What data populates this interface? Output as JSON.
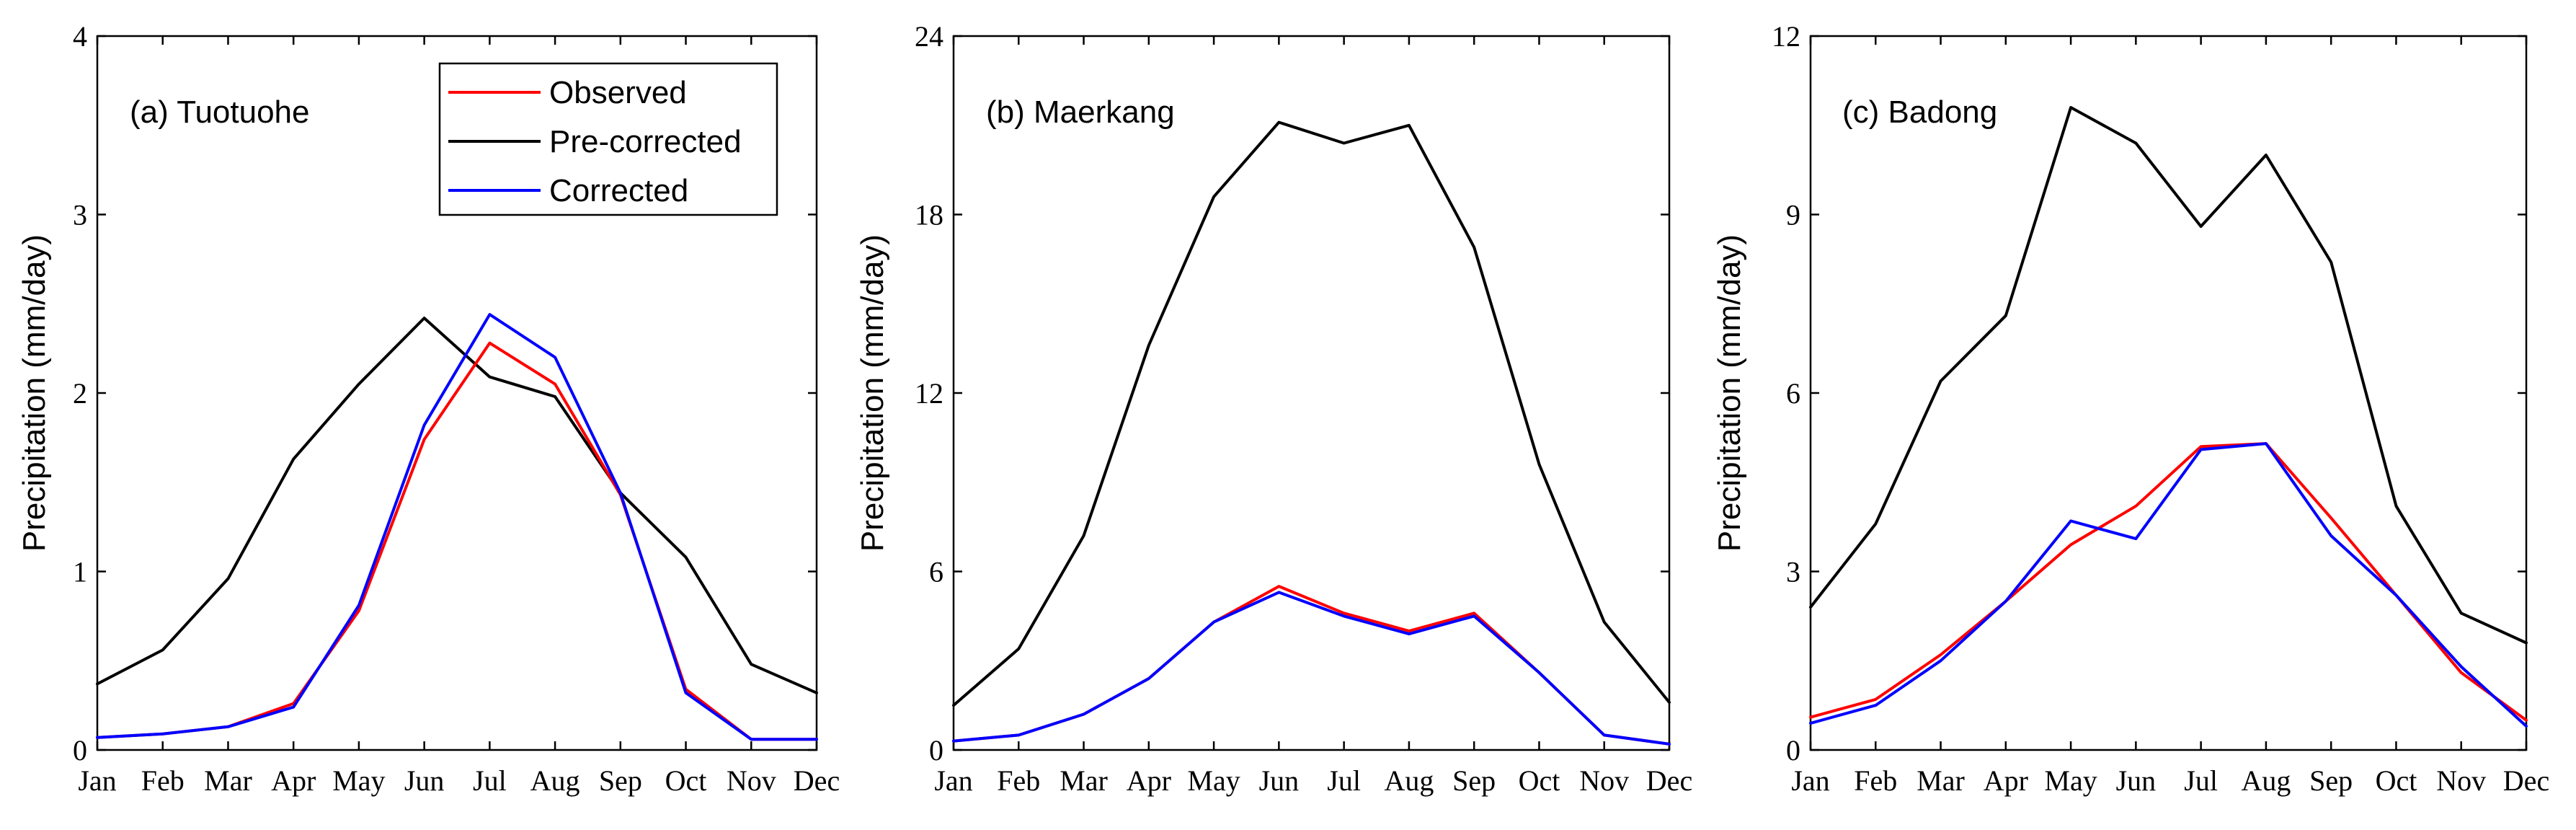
{
  "chart_data": [
    {
      "type": "line",
      "title": "(a) Tuotuohe",
      "xlabel": "",
      "ylabel": "Precipitation (mm/day)",
      "categories": [
        "Jan",
        "Feb",
        "Mar",
        "Apr",
        "May",
        "Jun",
        "Jul",
        "Aug",
        "Sep",
        "Oct",
        "Nov",
        "Dec"
      ],
      "ylim": [
        0,
        4
      ],
      "yticks": [
        0,
        1,
        2,
        3,
        4
      ],
      "legend": "top-right",
      "series": [
        {
          "name": "Observed",
          "color": "#ff0000",
          "values": [
            0.07,
            0.09,
            0.13,
            0.26,
            0.78,
            1.74,
            2.28,
            2.05,
            1.43,
            0.34,
            0.06,
            0.06
          ]
        },
        {
          "name": "Pre-corrected",
          "color": "#000000",
          "values": [
            0.37,
            0.56,
            0.96,
            1.63,
            2.05,
            2.42,
            2.09,
            1.98,
            1.44,
            1.08,
            0.48,
            0.32
          ]
        },
        {
          "name": "Corrected",
          "color": "#0000ff",
          "values": [
            0.07,
            0.09,
            0.13,
            0.24,
            0.81,
            1.82,
            2.44,
            2.2,
            1.44,
            0.32,
            0.06,
            0.06
          ]
        }
      ]
    },
    {
      "type": "line",
      "title": "(b) Maerkang",
      "xlabel": "",
      "ylabel": "Precipitation (mm/day)",
      "categories": [
        "Jan",
        "Feb",
        "Mar",
        "Apr",
        "May",
        "Jun",
        "Jul",
        "Aug",
        "Sep",
        "Oct",
        "Nov",
        "Dec"
      ],
      "ylim": [
        0,
        24
      ],
      "yticks": [
        0,
        6,
        12,
        18,
        24
      ],
      "series": [
        {
          "name": "Observed",
          "color": "#ff0000",
          "values": [
            0.3,
            0.5,
            1.2,
            2.4,
            4.3,
            5.5,
            4.6,
            4.0,
            4.6,
            2.6,
            0.5,
            0.2
          ]
        },
        {
          "name": "Pre-corrected",
          "color": "#000000",
          "values": [
            1.5,
            3.4,
            7.2,
            13.6,
            18.6,
            21.1,
            20.4,
            21.0,
            16.9,
            9.6,
            4.3,
            1.6
          ]
        },
        {
          "name": "Corrected",
          "color": "#0000ff",
          "values": [
            0.3,
            0.5,
            1.2,
            2.4,
            4.3,
            5.3,
            4.5,
            3.9,
            4.5,
            2.6,
            0.5,
            0.2
          ]
        }
      ]
    },
    {
      "type": "line",
      "title": "(c) Badong",
      "xlabel": "",
      "ylabel": "Precipitation (mm/day)",
      "categories": [
        "Jan",
        "Feb",
        "Mar",
        "Apr",
        "May",
        "Jun",
        "Jul",
        "Aug",
        "Sep",
        "Oct",
        "Nov",
        "Dec"
      ],
      "ylim": [
        0,
        12
      ],
      "yticks": [
        0,
        3,
        6,
        9,
        12
      ],
      "series": [
        {
          "name": "Observed",
          "color": "#ff0000",
          "values": [
            0.55,
            0.85,
            1.6,
            2.5,
            3.45,
            4.1,
            5.1,
            5.15,
            3.9,
            2.6,
            1.3,
            0.5
          ]
        },
        {
          "name": "Pre-corrected",
          "color": "#000000",
          "values": [
            2.4,
            3.8,
            6.2,
            7.3,
            10.8,
            10.2,
            8.8,
            10.0,
            8.2,
            4.1,
            2.3,
            1.8
          ]
        },
        {
          "name": "Corrected",
          "color": "#0000ff",
          "values": [
            0.45,
            0.75,
            1.5,
            2.5,
            3.85,
            3.55,
            5.05,
            5.15,
            3.6,
            2.6,
            1.4,
            0.4
          ]
        }
      ]
    }
  ]
}
